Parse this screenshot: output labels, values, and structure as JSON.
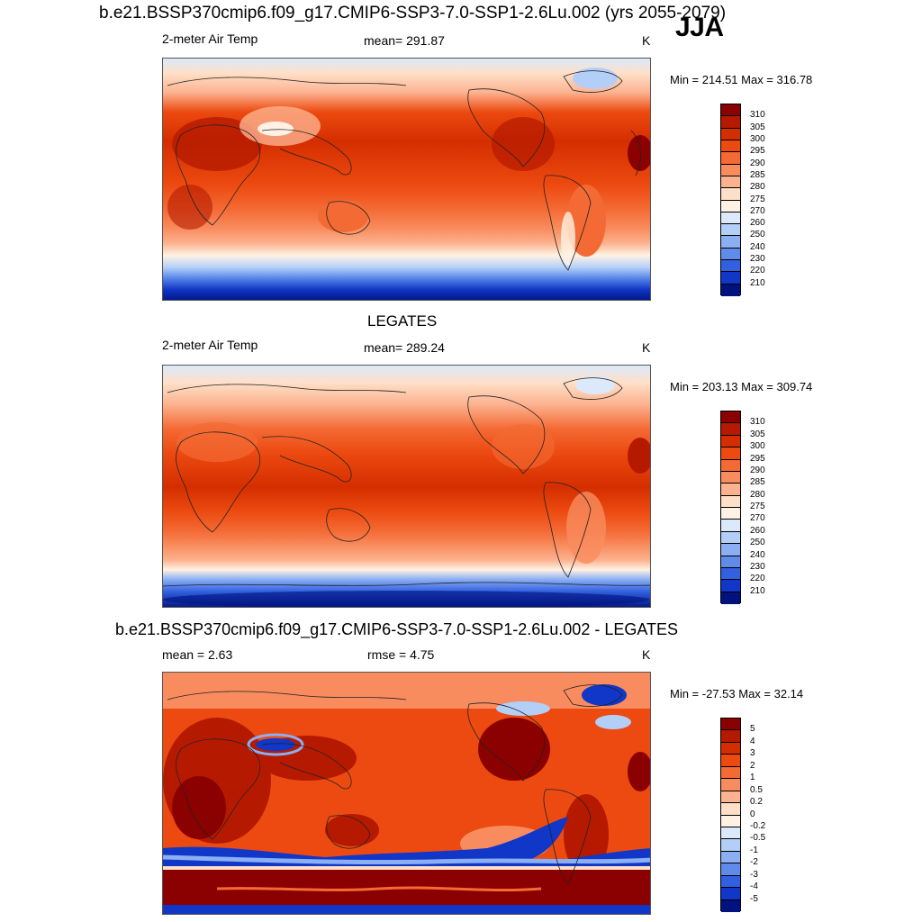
{
  "header": {
    "main_title": "b.e21.BSSP370cmip6.f09_g17.CMIP6-SSP3-7.0-SSP1-2.6Lu.002 (yrs 2055-2079)",
    "season": "JJA"
  },
  "panels": [
    {
      "id": "model",
      "title": "",
      "left": "2-meter Air Temp",
      "center": "mean= 291.87",
      "right": "K",
      "minmax": "Min = 214.51 Max = 316.78",
      "levels": [
        "310",
        "305",
        "300",
        "295",
        "290",
        "285",
        "280",
        "275",
        "270",
        "260",
        "250",
        "240",
        "230",
        "220",
        "210"
      ],
      "colors": [
        "#8b0000",
        "#b51a00",
        "#d42e00",
        "#ec4a10",
        "#f46a34",
        "#f98c5e",
        "#fcb28f",
        "#fee0c8",
        "#fff2e4",
        "#dbe9fb",
        "#b3cff8",
        "#8aaff2",
        "#5f8cea",
        "#3160e0",
        "#1037c8",
        "#00127e"
      ]
    },
    {
      "id": "obs",
      "title": "LEGATES",
      "left": "2-meter Air Temp",
      "center": "mean= 289.24",
      "right": "K",
      "minmax": "Min = 203.13 Max = 309.74",
      "levels": [
        "310",
        "305",
        "300",
        "295",
        "290",
        "285",
        "280",
        "275",
        "270",
        "260",
        "250",
        "240",
        "230",
        "220",
        "210"
      ],
      "colors": [
        "#8b0000",
        "#b51a00",
        "#d42e00",
        "#ec4a10",
        "#f46a34",
        "#f98c5e",
        "#fcb28f",
        "#fee0c8",
        "#fff2e4",
        "#dbe9fb",
        "#b3cff8",
        "#8aaff2",
        "#5f8cea",
        "#3160e0",
        "#1037c8",
        "#00127e"
      ]
    },
    {
      "id": "diff",
      "title": "b.e21.BSSP370cmip6.f09_g17.CMIP6-SSP3-7.0-SSP1-2.6Lu.002 - LEGATES",
      "left": "mean =   2.63",
      "center": "rmse =   4.75",
      "right": "K",
      "minmax": "Min = -27.53 Max =  32.14",
      "levels": [
        "5",
        "4",
        "3",
        "2",
        "1",
        "0.5",
        "0.2",
        "0",
        "-0.2",
        "-0.5",
        "-1",
        "-2",
        "-3",
        "-4",
        "-5"
      ],
      "colors": [
        "#8b0000",
        "#b51a00",
        "#d42e00",
        "#ec4a10",
        "#f46a34",
        "#f98c5e",
        "#fcb28f",
        "#fee0c8",
        "#fff2e4",
        "#dbe9fb",
        "#b3cff8",
        "#8aaff2",
        "#5f8cea",
        "#3160e0",
        "#1037c8",
        "#00127e"
      ]
    }
  ]
}
